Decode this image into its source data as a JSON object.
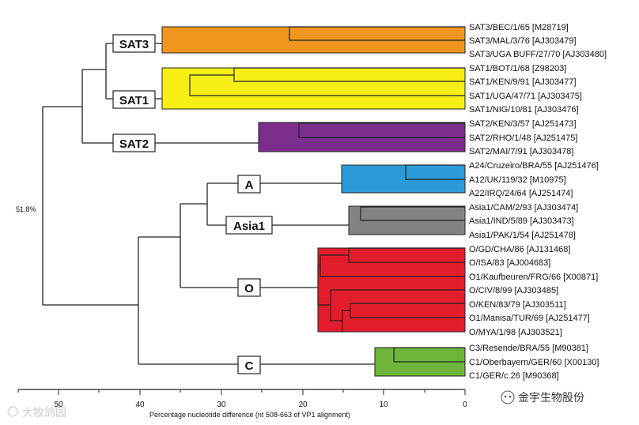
{
  "serotypes": {
    "sat3": "SAT3",
    "sat1": "SAT1",
    "sat2": "SAT2",
    "a": "A",
    "asia1": "Asia1",
    "o": "O",
    "c": "C"
  },
  "leaves": [
    {
      "label": "SAT3/BEC/1/65 [M28719]"
    },
    {
      "label": "SAT3/MAL/3/76 [AJ303479]"
    },
    {
      "label": "SAT3/UGA BUFF/27/70 [AJ303480]"
    },
    {
      "label": "SAT1/BOT/1/68 [Z98203]"
    },
    {
      "label": "SAT1/KEN/9/91 [AJ303477]"
    },
    {
      "label": "SAT1/UGA/47/71 [AJ303475]"
    },
    {
      "label": "SAT1/NIG/10/81 [AJ303476]"
    },
    {
      "label": "SAT2/KEN/3/57 [AJ251473]"
    },
    {
      "label": "SAT2/RHO/1/48 [AJ251475]"
    },
    {
      "label": "SAT2/MAI/7/91 [AJ303478]"
    },
    {
      "label": "A24/Cruzeiro/BRA/55 [AJ251476]"
    },
    {
      "label": "A12/UK/119/32 [M10975]"
    },
    {
      "label": "A22/IRQ/24/64 [AJ251474]"
    },
    {
      "label": "Asia1/CAM/2/93 [AJ303474]"
    },
    {
      "label": "Asia1/IND/5/89 [AJ303473]"
    },
    {
      "label": "Asia1/PAK/1/54 [AJ251478]"
    },
    {
      "label": "O/GD/CHA/86 [AJ131468]"
    },
    {
      "label": "O/ISA/83 [AJ004683]"
    },
    {
      "label": "O1/Kaufbeuren/FRG/66 [X00871]"
    },
    {
      "label": "O/CIV/8/99 [AJ303485]"
    },
    {
      "label": "O/KEN/83/79 [AJ303511]"
    },
    {
      "label": "O1/Manisa/TUR/69 [AJ251477]"
    },
    {
      "label": "O/MYA/1/98 [AJ303521]"
    },
    {
      "label": "C3/Resende/BRA/55 [M90381]"
    },
    {
      "label": "C1/Oberbayern/GER/60 [X00130]"
    },
    {
      "label": "C1/GER/c.26 [M90368]"
    }
  ],
  "bootstrap_label": "51.8%",
  "axis": {
    "ticks": [
      "50",
      "40",
      "30",
      "20",
      "10",
      "0"
    ],
    "title": "Percentage nucleotide difference (nt 508-663 of VP1 alignment)"
  },
  "watermark_left": "大牧鸽园",
  "watermark_right": "金宇生物股份",
  "colors": {
    "sat3": "#f0961e",
    "sat1": "#f7ef13",
    "sat2": "#7b2e8e",
    "a": "#2c9ad8",
    "asia1": "#838383",
    "o": "#e41d2c",
    "c": "#6cb53a"
  }
}
